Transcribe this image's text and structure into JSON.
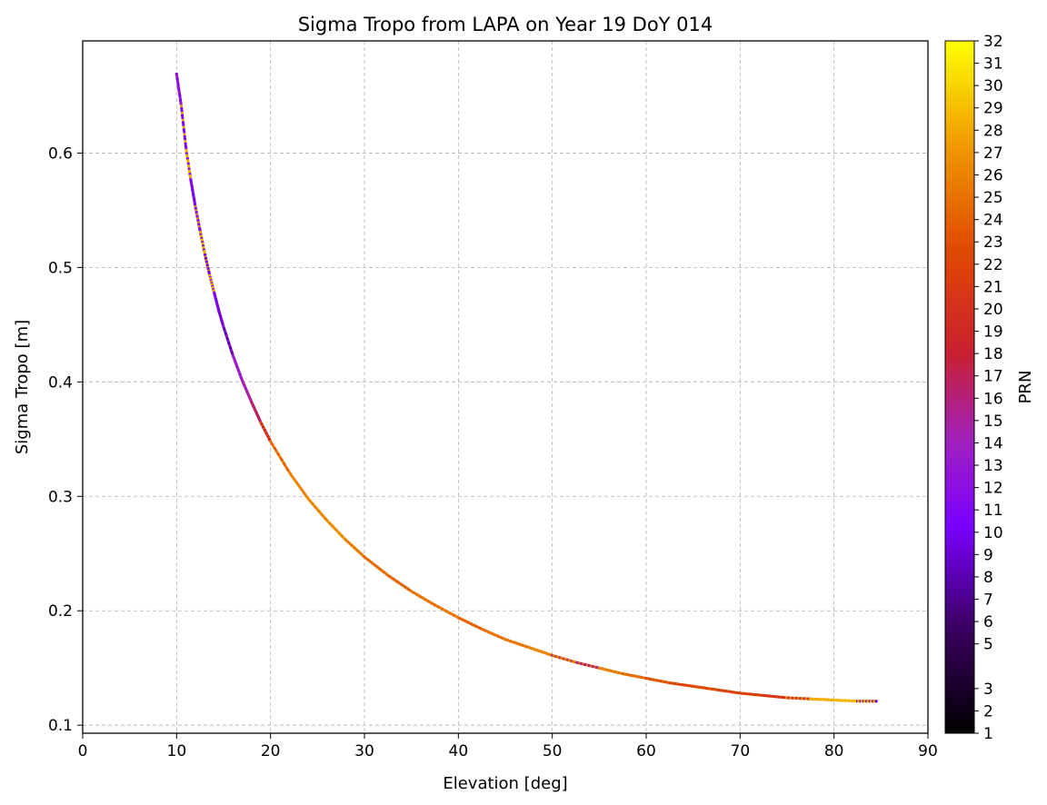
{
  "chart_data": {
    "type": "scatter",
    "title": "Sigma Tropo from LAPA on Year 19 DoY 014",
    "xlabel": "Elevation [deg]",
    "ylabel": "Sigma Tropo [m]",
    "xlim": [
      0,
      90
    ],
    "ylim": [
      0.093,
      0.698
    ],
    "xticks": [
      0,
      10,
      20,
      30,
      40,
      50,
      60,
      70,
      80,
      90
    ],
    "yticks": [
      0.1,
      0.2,
      0.3,
      0.4,
      0.5,
      0.6
    ],
    "grid": true,
    "colorbar": {
      "label": "PRN",
      "colormap": "gnuplot",
      "range": [
        1,
        32
      ],
      "ticks": [
        1,
        2,
        3,
        5,
        6,
        7,
        8,
        9,
        10,
        11,
        12,
        13,
        14,
        15,
        16,
        17,
        18,
        19,
        20,
        21,
        22,
        23,
        24,
        25,
        26,
        27,
        28,
        29,
        30,
        31,
        32
      ]
    },
    "series_points": {
      "x": [
        10.0,
        10.5,
        11.0,
        11.5,
        12.0,
        12.5,
        13.0,
        13.5,
        14.0,
        14.5,
        15.0,
        16.0,
        17.0,
        18.0,
        19.0,
        20.0,
        22.0,
        24.0,
        26.0,
        28.0,
        30.0,
        32.5,
        35.0,
        37.5,
        40.0,
        42.5,
        45.0,
        47.5,
        50.0,
        52.5,
        55.0,
        57.5,
        60.0,
        62.5,
        65.0,
        67.5,
        70.0,
        72.5,
        75.0,
        77.5,
        80.0,
        82.5,
        84.5
      ],
      "y": [
        0.669,
        0.641,
        0.604,
        0.577,
        0.553,
        0.532,
        0.512,
        0.494,
        0.478,
        0.462,
        0.448,
        0.423,
        0.401,
        0.382,
        0.364,
        0.348,
        0.321,
        0.298,
        0.279,
        0.262,
        0.247,
        0.231,
        0.217,
        0.205,
        0.194,
        0.184,
        0.175,
        0.168,
        0.161,
        0.155,
        0.15,
        0.145,
        0.141,
        0.137,
        0.134,
        0.131,
        0.128,
        0.126,
        0.124,
        0.123,
        0.122,
        0.121,
        0.121
      ],
      "prn": [
        13,
        10,
        28,
        10,
        12,
        28,
        9,
        28,
        10,
        12,
        8,
        13,
        14,
        16,
        18,
        24,
        26,
        26,
        27,
        26,
        25,
        24,
        25,
        26,
        24,
        25,
        25,
        26,
        26,
        16,
        26,
        25,
        24,
        22,
        23,
        22,
        22,
        21,
        20,
        28,
        29,
        28,
        9
      ]
    }
  }
}
